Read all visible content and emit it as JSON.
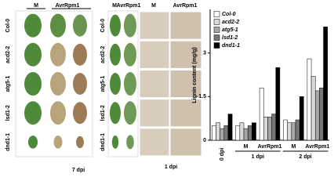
{
  "panel_a": {
    "headers": [
      "M",
      "AvrRpm1"
    ],
    "rows": [
      "Col-0",
      "acd2-2",
      "atg5-1",
      "lsd1-2",
      "dnd1-1"
    ],
    "caption": "7 dpi"
  },
  "panel_b": {
    "leaf_headers": [
      "M",
      "AvrRpm1"
    ],
    "micro_headers": [
      "M",
      "AvrRpm1"
    ],
    "rows": [
      "Col-0",
      "acd2-2",
      "atg5-1",
      "lsd1-2",
      "dnd1-1"
    ],
    "caption": "1 dpi"
  },
  "chart_data": {
    "type": "bar",
    "y_label": "Lignin content (mg/g)",
    "categories": [
      null,
      "M",
      "AvrRpm1",
      "M",
      "AvrRpm1"
    ],
    "groups": [
      "0 dpi",
      "1 dpi",
      "2 dpi"
    ],
    "series": [
      {
        "name": "Col-0",
        "color": "#ffffff",
        "values": [
          0.5,
          0.5,
          1.8,
          0.7,
          2.8
        ]
      },
      {
        "name": "acd2-2",
        "color": "#d9d9d9",
        "values": [
          0.6,
          0.6,
          0.8,
          0.6,
          2.2
        ]
      },
      {
        "name": "atg5-1",
        "color": "#a6a6a6",
        "values": [
          0.4,
          0.4,
          0.8,
          0.6,
          1.7
        ]
      },
      {
        "name": "lsd1-2",
        "color": "#777777",
        "values": [
          0.5,
          0.5,
          0.9,
          0.7,
          1.8
        ]
      },
      {
        "name": "dnd1-1",
        "color": "#000000",
        "values": [
          0.9,
          0.6,
          2.5,
          1.5,
          3.9
        ]
      }
    ],
    "ylim": [
      0,
      4.5
    ],
    "yticks": [
      0,
      1.5,
      3
    ],
    "legend": "upper-left"
  }
}
